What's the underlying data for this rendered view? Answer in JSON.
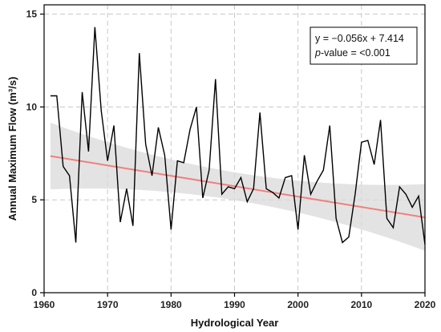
{
  "chart_data": {
    "type": "line",
    "xlabel": "Hydrological Year",
    "ylabel": "Annual Maximum Flow (m³/s)",
    "xlim": [
      1960,
      2020
    ],
    "ylim": [
      0,
      15.5
    ],
    "xticks": [
      1960,
      1970,
      1980,
      1990,
      2000,
      2010,
      2020
    ],
    "yticks": [
      0,
      5,
      10,
      15
    ],
    "grid": true,
    "x": [
      1961,
      1962,
      1963,
      1964,
      1965,
      1966,
      1967,
      1968,
      1969,
      1970,
      1971,
      1972,
      1973,
      1974,
      1975,
      1976,
      1977,
      1978,
      1979,
      1980,
      1981,
      1982,
      1983,
      1984,
      1985,
      1986,
      1987,
      1988,
      1989,
      1990,
      1991,
      1992,
      1993,
      1994,
      1995,
      1996,
      1997,
      1998,
      1999,
      2000,
      2001,
      2002,
      2003,
      2004,
      2005,
      2006,
      2007,
      2008,
      2009,
      2010,
      2011,
      2012,
      2013,
      2014,
      2015,
      2016,
      2017,
      2018,
      2019,
      2020
    ],
    "series": [
      {
        "values": [
          10.6,
          10.6,
          6.8,
          6.3,
          2.7,
          10.8,
          7.6,
          14.3,
          9.8,
          7.1,
          9.0,
          3.8,
          5.6,
          3.6,
          12.9,
          8.0,
          6.3,
          8.9,
          7.4,
          3.4,
          7.1,
          7.0,
          8.8,
          10.0,
          5.1,
          6.6,
          11.5,
          5.3,
          5.7,
          5.6,
          6.2,
          4.9,
          5.6,
          9.7,
          5.6,
          5.4,
          5.1,
          6.2,
          6.3,
          3.4,
          7.4,
          5.3,
          6.0,
          6.6,
          9.0,
          4.0,
          2.7,
          3.0,
          5.3,
          8.1,
          8.2,
          6.9,
          9.3,
          4.0,
          3.5,
          5.7,
          5.3,
          4.6,
          5.2,
          2.6
        ],
        "color": "#000000"
      }
    ],
    "trend": {
      "slope": -0.056,
      "intercept": 7.414,
      "color": "#f08080",
      "band_color": "#d9d9d9"
    },
    "annotation": {
      "equation": "y = −0.056x + 7.414",
      "pvalue_label": "p",
      "pvalue_rest": "-value = <0.001"
    }
  }
}
